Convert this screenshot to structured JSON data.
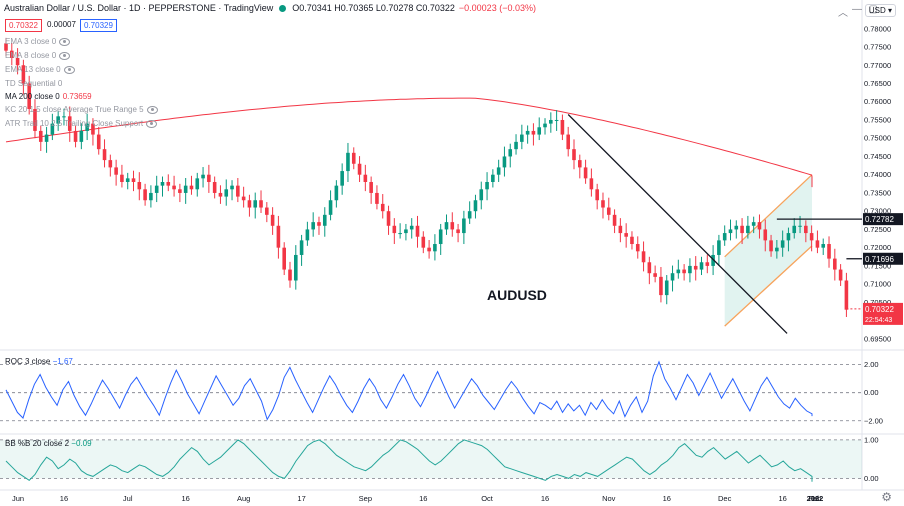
{
  "header": {
    "title": "Australian Dollar / U.S. Dollar · 1D · PEPPERSTONE · TradingView",
    "ohlc": "O0.70341 H0.70365 L0.70278 C0.70322",
    "change": "−0.00023 (−0.03%)",
    "sell_price": "0.70322",
    "spread": "0.00007",
    "buy_price": "0.70329",
    "currency": "USD",
    "status_color": "#089981"
  },
  "indicators": {
    "ema3": "EMA 3 close 0",
    "ema_b": "EMA 8 close 0",
    "ema_c": "EMA 13 close 0",
    "td": "TD Sequential 0",
    "ma200": "MA 200 close 0",
    "ma200_val": "0.73659",
    "kc": "KC 20 1.5 close Average True Range 5",
    "atr": "ATR Trail 10 2.5 Trailing Close Support"
  },
  "symbol_label": "AUDUSD",
  "icons": [
    "chevron-down-icon",
    "minimize-icon",
    "maximize-icon",
    "close-icon",
    "settings-icon",
    "eye-icon"
  ],
  "chart_data": [
    {
      "type": "candlestick",
      "pair": "AUDUSD",
      "ylim": [
        0.6925,
        0.7835
      ],
      "y_ticks": [
        "0.78000",
        "0.77500",
        "0.77000",
        "0.76500",
        "0.76000",
        "0.75500",
        "0.75000",
        "0.74500",
        "0.74000",
        "0.73500",
        "0.73000",
        "0.72500",
        "0.72000",
        "0.71500",
        "0.71000",
        "0.70500",
        "0.70000",
        "0.69500"
      ],
      "y_tick_values": [
        0.78,
        0.775,
        0.77,
        0.765,
        0.76,
        0.755,
        0.75,
        0.745,
        0.74,
        0.735,
        0.73,
        0.725,
        0.72,
        0.715,
        0.71,
        0.705,
        0.7,
        0.695
      ],
      "x_ticks": [
        "Jun",
        "16",
        "Jul",
        "16",
        "Aug",
        "17",
        "Sep",
        "16",
        "Oct",
        "16",
        "Nov",
        "16",
        "Dec",
        "16",
        "2022",
        "16",
        "Feb"
      ],
      "close_series": [
        0.774,
        0.772,
        0.77,
        0.765,
        0.758,
        0.752,
        0.749,
        0.751,
        0.754,
        0.756,
        0.756,
        0.752,
        0.749,
        0.752,
        0.754,
        0.751,
        0.747,
        0.744,
        0.742,
        0.74,
        0.738,
        0.739,
        0.738,
        0.736,
        0.733,
        0.735,
        0.737,
        0.738,
        0.737,
        0.736,
        0.735,
        0.737,
        0.736,
        0.739,
        0.74,
        0.738,
        0.735,
        0.734,
        0.736,
        0.737,
        0.734,
        0.733,
        0.731,
        0.733,
        0.731,
        0.729,
        0.726,
        0.72,
        0.714,
        0.711,
        0.718,
        0.722,
        0.725,
        0.727,
        0.726,
        0.729,
        0.733,
        0.737,
        0.741,
        0.746,
        0.743,
        0.74,
        0.738,
        0.735,
        0.732,
        0.73,
        0.726,
        0.724,
        0.724,
        0.725,
        0.726,
        0.723,
        0.72,
        0.719,
        0.721,
        0.725,
        0.727,
        0.725,
        0.724,
        0.728,
        0.73,
        0.733,
        0.736,
        0.738,
        0.74,
        0.742,
        0.745,
        0.747,
        0.749,
        0.751,
        0.752,
        0.751,
        0.753,
        0.754,
        0.755,
        0.755,
        0.751,
        0.747,
        0.744,
        0.742,
        0.739,
        0.736,
        0.733,
        0.731,
        0.729,
        0.726,
        0.724,
        0.723,
        0.721,
        0.719,
        0.716,
        0.713,
        0.712,
        0.707,
        0.711,
        0.713,
        0.714,
        0.713,
        0.715,
        0.714,
        0.716,
        0.715,
        0.718,
        0.722,
        0.724,
        0.725,
        0.726,
        0.724,
        0.726,
        0.727,
        0.725,
        0.722,
        0.719,
        0.72,
        0.722,
        0.724,
        0.726,
        0.726,
        0.724,
        0.722,
        0.72,
        0.721,
        0.717,
        0.714,
        0.711,
        0.703
      ],
      "last_price": "0.70322",
      "countdown": "22:54:43",
      "levels": [
        {
          "label": "0.72782",
          "value": 0.72782
        },
        {
          "label": "0.71696",
          "value": 0.71696
        }
      ],
      "ma200": {
        "name": "MA 200",
        "start": 0.749,
        "peak": 0.761,
        "end": 0.7366
      }
    },
    {
      "type": "line",
      "label": "ROC 3 close",
      "value_label": "−1.67",
      "ylim": [
        -2.8,
        2.9
      ],
      "y_ticks": [
        "2.00",
        "0.00",
        "−2.00"
      ],
      "y_tick_values": [
        2,
        0,
        -2
      ],
      "values": [
        0.2,
        -0.6,
        -1.4,
        -1.8,
        -0.5,
        0.6,
        1.3,
        0.4,
        -0.3,
        -0.9,
        0.2,
        0.8,
        -0.2,
        -1.0,
        -1.6,
        -0.8,
        0.1,
        0.9,
        0.3,
        -0.4,
        -1.1,
        -0.2,
        0.6,
        1.1,
        0.4,
        -0.3,
        -0.9,
        -1.6,
        -0.4,
        0.7,
        1.6,
        0.8,
        -0.1,
        -0.8,
        -1.5,
        -0.6,
        0.3,
        1.2,
        0.5,
        -0.2,
        -0.9,
        -0.4,
        0.5,
        1.0,
        0.2,
        -0.6,
        -1.9,
        -1.2,
        -0.2,
        1.1,
        1.8,
        0.9,
        0.1,
        -0.7,
        -1.4,
        -0.5,
        0.4,
        1.2,
        0.6,
        -0.2,
        -0.9,
        -1.4,
        -0.6,
        0.3,
        1.0,
        0.4,
        -0.5,
        -1.1,
        -0.3,
        0.6,
        1.3,
        0.5,
        -0.4,
        -1.0,
        -0.2,
        0.7,
        1.5,
        0.6,
        -0.3,
        -1.1,
        -0.4,
        0.3,
        1.0,
        0.5,
        -0.2,
        -0.7,
        -1.2,
        -0.5,
        0.2,
        0.8,
        0.3,
        -0.4,
        -1.0,
        -1.5,
        -0.7,
        -0.9,
        -1.2,
        -0.6,
        -1.4,
        -0.8,
        -1.3,
        -0.9,
        -1.6,
        -0.7,
        -1.2,
        -0.5,
        -1.1,
        -1.5,
        -0.6,
        -1.7,
        -0.9,
        -0.3,
        -1.4,
        -0.6,
        1.2,
        2.2,
        1.0,
        0.3,
        -0.5,
        0.4,
        1.3,
        0.7,
        -0.2,
        0.6,
        1.4,
        0.5,
        -0.4,
        0.3,
        1.0,
        0.2,
        -0.6,
        -1.3,
        -0.4,
        0.5,
        1.1,
        0.4,
        -0.3,
        -0.8,
        -1.1,
        -0.4,
        -0.9,
        -1.3,
        -1.5,
        -1.67
      ]
    },
    {
      "type": "area",
      "label": "BB %B 20 close 2",
      "value_label": "−0.09",
      "ylim": [
        -0.25,
        1.1
      ],
      "y_ticks": [
        "1.00",
        "0.00"
      ],
      "y_tick_values": [
        1,
        0
      ],
      "values": [
        0.45,
        0.3,
        0.15,
        0.05,
        -0.05,
        0.1,
        0.35,
        0.55,
        0.45,
        0.25,
        0.35,
        0.5,
        0.4,
        0.2,
        0.1,
        0.05,
        0.15,
        0.25,
        0.35,
        0.3,
        0.2,
        0.15,
        0.25,
        0.35,
        0.3,
        0.2,
        0.1,
        0.05,
        0.15,
        0.3,
        0.5,
        0.65,
        0.8,
        0.7,
        0.5,
        0.35,
        0.45,
        0.55,
        0.7,
        0.85,
        1.0,
        0.9,
        0.75,
        0.6,
        0.45,
        0.3,
        0.15,
        0.05,
        0.0,
        0.2,
        0.45,
        0.65,
        0.85,
        0.95,
        1.0,
        0.9,
        0.75,
        0.6,
        0.5,
        0.4,
        0.3,
        0.25,
        0.2,
        0.3,
        0.45,
        0.6,
        0.7,
        0.85,
        1.0,
        0.95,
        0.85,
        0.75,
        0.6,
        0.45,
        0.35,
        0.45,
        0.6,
        0.75,
        0.9,
        1.0,
        0.95,
        0.9,
        0.85,
        0.75,
        0.6,
        0.45,
        0.3,
        0.25,
        0.2,
        0.15,
        0.1,
        0.05,
        0.0,
        -0.05,
        0.05,
        0.1,
        0.05,
        0.0,
        0.1,
        0.05,
        0.15,
        0.1,
        0.05,
        0.15,
        0.25,
        0.35,
        0.45,
        0.55,
        0.5,
        0.35,
        0.2,
        0.1,
        0.2,
        0.35,
        0.45,
        0.6,
        0.8,
        0.9,
        0.75,
        0.6,
        0.55,
        0.7,
        0.8,
        0.65,
        0.5,
        0.6,
        0.7,
        0.55,
        0.4,
        0.5,
        0.6,
        0.45,
        0.3,
        0.35,
        0.45,
        0.3,
        0.2,
        0.25,
        0.15,
        0.05,
        -0.09
      ]
    }
  ]
}
